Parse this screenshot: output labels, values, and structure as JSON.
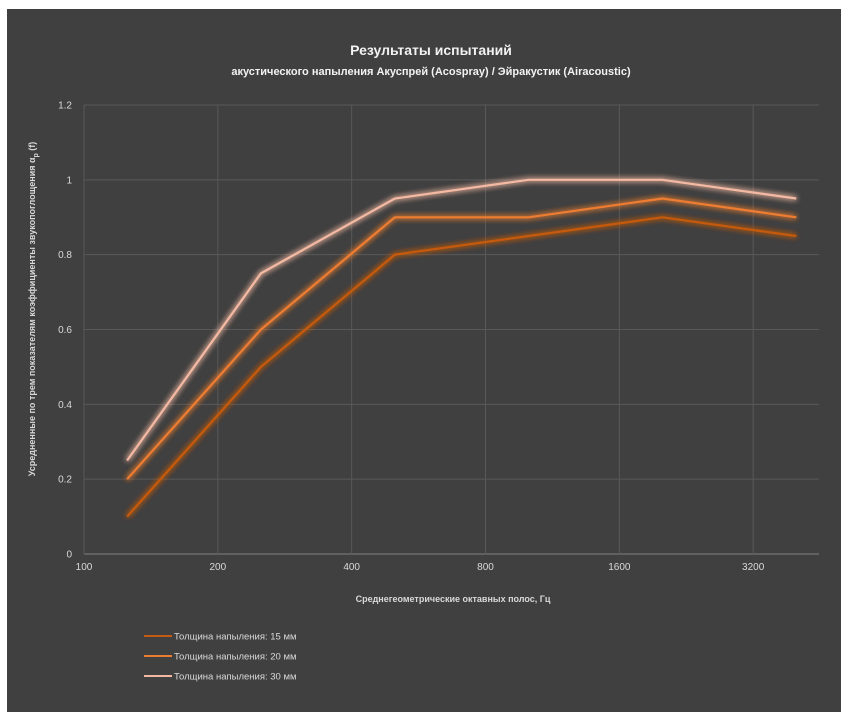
{
  "chart_data": {
    "type": "line",
    "title": "Результаты испытаний",
    "subtitle": "акустического напыления Акуспрей (Acospray) / Эйракустик (Airacoustic)",
    "xlabel": "Среднегеометрические октавных полос, Гц",
    "ylabel": "Усредненные по трем показателям коэффициенты звукопоглощения α",
    "ylabel_sub": "р",
    "ylabel_suffix": " (f)",
    "x_scale": "log2",
    "xlim": [
      100,
      4500
    ],
    "ylim": [
      0,
      1.2
    ],
    "x_ticks": [
      100,
      200,
      400,
      800,
      1600,
      3200
    ],
    "y_ticks": [
      0,
      0.2,
      0.4,
      0.6,
      0.8,
      1,
      1.2
    ],
    "grid": true,
    "legend_position": "bottom-left",
    "x": [
      125,
      250,
      500,
      1000,
      2000,
      4000
    ],
    "series": [
      {
        "name": "Толщина напыления: 15 мм",
        "color": "#c55a11",
        "values": [
          0.1,
          0.5,
          0.8,
          0.85,
          0.9,
          0.85
        ]
      },
      {
        "name": "Толщина напыления: 20 мм",
        "color": "#ed7d31",
        "values": [
          0.2,
          0.6,
          0.9,
          0.9,
          0.95,
          0.9
        ]
      },
      {
        "name": "Толщина напыления: 30 мм",
        "color": "#f4b9a3",
        "values": [
          0.25,
          0.75,
          0.95,
          1.0,
          1.0,
          0.95
        ]
      }
    ]
  }
}
